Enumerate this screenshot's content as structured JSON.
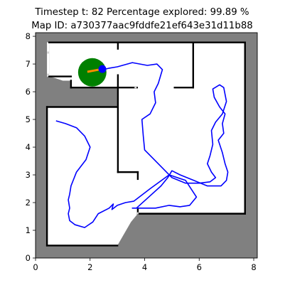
{
  "chart_data": {
    "type": "map",
    "title_line1": "Timestep t: 82   Percentage explored: 99.89 %",
    "title_line2": " Map ID: a730377aac9fddfe21ef643e31d11b88",
    "xlim": [
      0,
      8.13
    ],
    "ylim": [
      0,
      8.13
    ],
    "x_ticks": [
      0,
      2,
      4,
      6,
      8
    ],
    "y_ticks": [
      0,
      1,
      2,
      3,
      4,
      5,
      6,
      7,
      8
    ],
    "colors": {
      "unknown": "#808080",
      "free": "#ffffff",
      "walls": "#000000",
      "path": "#0000ff",
      "agent_marker": "#008000",
      "heading": "#ff8c00",
      "frontier": "#d3d3d3"
    },
    "free_space": {
      "main_polygon": [
        [
          0.5,
          7.78
        ],
        [
          7.68,
          7.78
        ],
        [
          7.68,
          1.6
        ],
        [
          3.75,
          1.6
        ],
        [
          3.5,
          1.3
        ],
        [
          3.0,
          0.45
        ],
        [
          0.42,
          0.45
        ],
        [
          0.42,
          5.45
        ],
        [
          3.0,
          5.45
        ],
        [
          3.0,
          6.15
        ],
        [
          1.3,
          6.15
        ],
        [
          1.3,
          6.4
        ],
        [
          1.0,
          6.4
        ],
        [
          0.7,
          6.5
        ],
        [
          0.5,
          6.55
        ]
      ],
      "left_pocket": [
        [
          0.42,
          7.78
        ],
        [
          0.5,
          7.78
        ],
        [
          0.5,
          6.55
        ],
        [
          0.42,
          6.55
        ]
      ]
    },
    "walls": [
      [
        [
          0.5,
          7.78
        ],
        [
          7.68,
          7.78
        ]
      ],
      [
        [
          7.68,
          7.78
        ],
        [
          7.68,
          1.6
        ]
      ],
      [
        [
          7.68,
          1.6
        ],
        [
          3.75,
          1.6
        ]
      ],
      [
        [
          3.75,
          1.6
        ],
        [
          3.75,
          1.75
        ]
      ],
      [
        [
          0.42,
          5.45
        ],
        [
          3.0,
          5.45
        ]
      ],
      [
        [
          0.42,
          5.45
        ],
        [
          0.42,
          0.45
        ]
      ],
      [
        [
          0.42,
          0.45
        ],
        [
          3.0,
          0.45
        ]
      ],
      [
        [
          3.02,
          6.6
        ],
        [
          3.02,
          3.1
        ]
      ],
      [
        [
          3.02,
          3.1
        ],
        [
          3.75,
          3.1
        ]
      ],
      [
        [
          3.75,
          3.1
        ],
        [
          3.75,
          2.85
        ]
      ],
      [
        [
          3.02,
          7.78
        ],
        [
          3.02,
          7.55
        ]
      ],
      [
        [
          3.02,
          6.15
        ],
        [
          3.72,
          6.15
        ]
      ],
      [
        [
          5.78,
          7.78
        ],
        [
          5.78,
          6.15
        ]
      ],
      [
        [
          5.1,
          6.15
        ],
        [
          5.78,
          6.15
        ]
      ],
      [
        [
          1.3,
          6.4
        ],
        [
          1.3,
          6.15
        ]
      ],
      [
        [
          1.3,
          6.15
        ],
        [
          3.0,
          6.15
        ]
      ],
      [
        [
          0.5,
          6.55
        ],
        [
          1.3,
          6.55
        ]
      ]
    ],
    "path": [
      [
        0.75,
        4.95
      ],
      [
        1.1,
        4.85
      ],
      [
        1.5,
        4.7
      ],
      [
        1.8,
        4.4
      ],
      [
        2.0,
        4.0
      ],
      [
        1.85,
        3.55
      ],
      [
        1.5,
        3.1
      ],
      [
        1.3,
        2.6
      ],
      [
        1.25,
        2.3
      ],
      [
        1.2,
        2.1
      ],
      [
        1.25,
        1.8
      ],
      [
        1.2,
        1.6
      ],
      [
        1.25,
        1.35
      ],
      [
        1.45,
        1.2
      ],
      [
        1.8,
        1.1
      ],
      [
        2.1,
        1.3
      ],
      [
        2.3,
        1.6
      ],
      [
        2.7,
        1.8
      ],
      [
        2.85,
        1.95
      ],
      [
        2.8,
        1.75
      ],
      [
        3.0,
        1.9
      ],
      [
        3.3,
        2.0
      ],
      [
        3.6,
        2.05
      ],
      [
        4.2,
        2.5
      ],
      [
        4.9,
        3.0
      ],
      [
        5.5,
        2.8
      ],
      [
        5.9,
        2.2
      ],
      [
        5.65,
        1.9
      ],
      [
        5.3,
        1.85
      ],
      [
        4.9,
        1.9
      ],
      [
        4.4,
        1.8
      ],
      [
        3.9,
        1.8
      ],
      [
        3.55,
        1.8
      ],
      [
        3.7,
        1.8
      ],
      [
        4.15,
        2.2
      ],
      [
        4.6,
        2.6
      ],
      [
        4.85,
        2.9
      ],
      [
        5.0,
        3.15
      ],
      [
        5.3,
        3.0
      ],
      [
        5.8,
        2.8
      ],
      [
        6.3,
        2.6
      ],
      [
        6.8,
        2.6
      ],
      [
        7.0,
        2.8
      ],
      [
        7.05,
        3.1
      ],
      [
        6.95,
        3.4
      ],
      [
        6.85,
        3.8
      ],
      [
        6.7,
        4.25
      ],
      [
        6.9,
        4.5
      ],
      [
        6.85,
        4.85
      ],
      [
        6.95,
        5.2
      ],
      [
        6.75,
        5.45
      ],
      [
        6.55,
        5.8
      ],
      [
        6.5,
        6.1
      ],
      [
        6.75,
        6.25
      ],
      [
        6.9,
        6.15
      ],
      [
        7.0,
        5.65
      ],
      [
        6.85,
        5.2
      ],
      [
        6.6,
        4.9
      ],
      [
        6.45,
        4.6
      ],
      [
        6.5,
        4.1
      ],
      [
        6.4,
        3.7
      ],
      [
        6.3,
        3.4
      ],
      [
        6.45,
        3.1
      ],
      [
        6.6,
        2.9
      ],
      [
        6.4,
        2.75
      ],
      [
        6.0,
        2.7
      ],
      [
        5.5,
        2.7
      ],
      [
        5.0,
        2.9
      ],
      [
        4.7,
        3.2
      ],
      [
        4.3,
        3.6
      ],
      [
        4.0,
        3.9
      ],
      [
        3.95,
        4.4
      ],
      [
        3.9,
        5.0
      ],
      [
        4.2,
        5.2
      ],
      [
        4.4,
        5.6
      ],
      [
        4.35,
        6.0
      ],
      [
        4.5,
        6.3
      ],
      [
        4.65,
        6.8
      ],
      [
        4.45,
        7.0
      ],
      [
        4.1,
        6.95
      ],
      [
        3.55,
        7.05
      ],
      [
        3.0,
        6.9
      ],
      [
        2.7,
        6.85
      ],
      [
        2.42,
        6.78
      ]
    ],
    "agent": {
      "x": 2.08,
      "y": 6.7,
      "marker_radius": 0.52
    },
    "heading_line": [
      [
        1.9,
        6.72
      ],
      [
        2.45,
        6.82
      ]
    ],
    "frontier_bits": [
      [
        0.47,
        6.6
      ],
      [
        0.47,
        7.4
      ],
      [
        3.68,
        6.15
      ],
      [
        3.75,
        1.6
      ]
    ]
  }
}
